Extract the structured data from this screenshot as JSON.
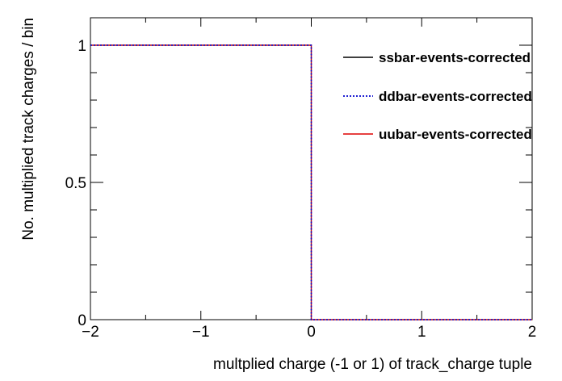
{
  "chart_data": {
    "type": "line",
    "subtype": "step-histogram",
    "xlabel": "multplied charge (-1 or 1) of track_charge tuple",
    "ylabel": "No. multiplied track charges / bin",
    "xlim": [
      -2,
      2
    ],
    "ylim": [
      0,
      1.1
    ],
    "x_ticks": [
      -2,
      -1,
      0,
      1,
      2
    ],
    "x_tick_labels": [
      "−2",
      "−1",
      "0",
      "1",
      "2"
    ],
    "y_ticks": [
      0,
      0.5,
      1
    ],
    "y_tick_labels": [
      "0",
      "0.5",
      "1"
    ],
    "grid": false,
    "legend_position": "top-right",
    "bins": [
      [
        -2,
        0
      ],
      [
        0,
        2
      ]
    ],
    "series": [
      {
        "name": "ssbar-events-corrected",
        "values": [
          1.0,
          0.0
        ],
        "color": "#000000",
        "style": "solid"
      },
      {
        "name": "ddbar-events-corrected",
        "values": [
          1.0,
          0.0
        ],
        "color": "#0000cc",
        "style": "dotted"
      },
      {
        "name": "uubar-events-corrected",
        "values": [
          1.0,
          0.0
        ],
        "color": "#dd0000",
        "style": "solid"
      }
    ]
  }
}
